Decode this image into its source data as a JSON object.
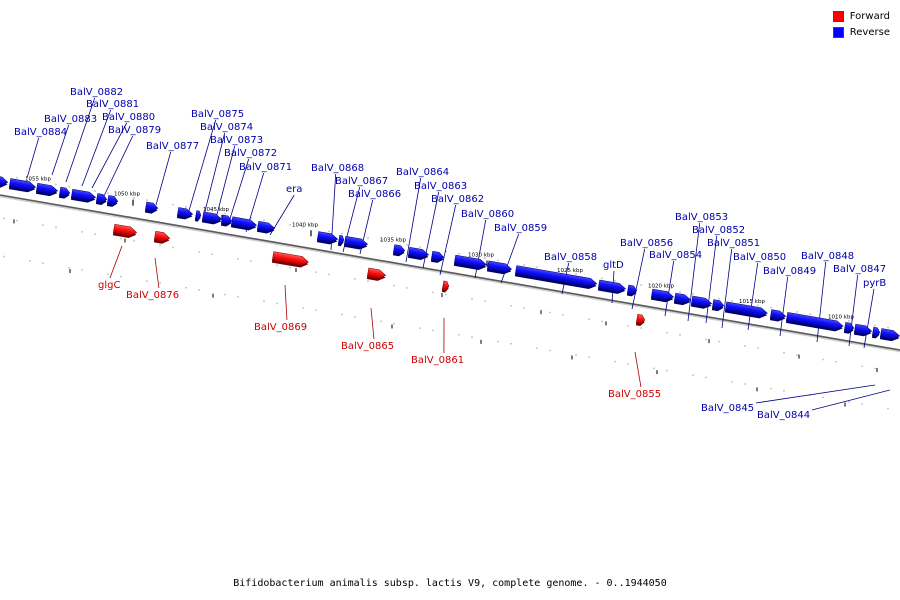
{
  "legend": {
    "forward": {
      "label": "Forward",
      "color": "#ff0000"
    },
    "reverse": {
      "label": "Reverse",
      "color": "#0000ff"
    }
  },
  "caption": "Bifidobacterium animalis subsp. lactis V9, complete genome. - 0..1944050",
  "scale_labels": [
    "1055 kbp",
    "1050 kbp",
    "1045 kbp",
    "1040 kbp",
    "1035 kbp",
    "1030 kbp",
    "1025 kbp",
    "1020 kbp",
    "1015 kbp",
    "1010 kbp"
  ],
  "genes_forward": [
    "glgC",
    "BalV_0876",
    "BalV_0869",
    "BalV_0865",
    "BalV_0861",
    "BalV_0855"
  ],
  "genes_reverse": [
    "BalV_0884",
    "BalV_0883",
    "BalV_0882",
    "BalV_0881",
    "BalV_0880",
    "BalV_0879",
    "BalV_0877",
    "BalV_0875",
    "BalV_0874",
    "BalV_0873",
    "BalV_0872",
    "BalV_0871",
    "era",
    "BalV_0868",
    "BalV_0867",
    "BalV_0866",
    "BalV_0864",
    "BalV_0863",
    "BalV_0862",
    "BalV_0860",
    "BalV_0859",
    "BalV_0858",
    "gltD",
    "BalV_0856",
    "BalV_0854",
    "BalV_0853",
    "BalV_0852",
    "BalV_0851",
    "BalV_0850",
    "BalV_0849",
    "BalV_0848",
    "BalV_0847",
    "pyrB",
    "BalV_0845",
    "BalV_0844"
  ]
}
